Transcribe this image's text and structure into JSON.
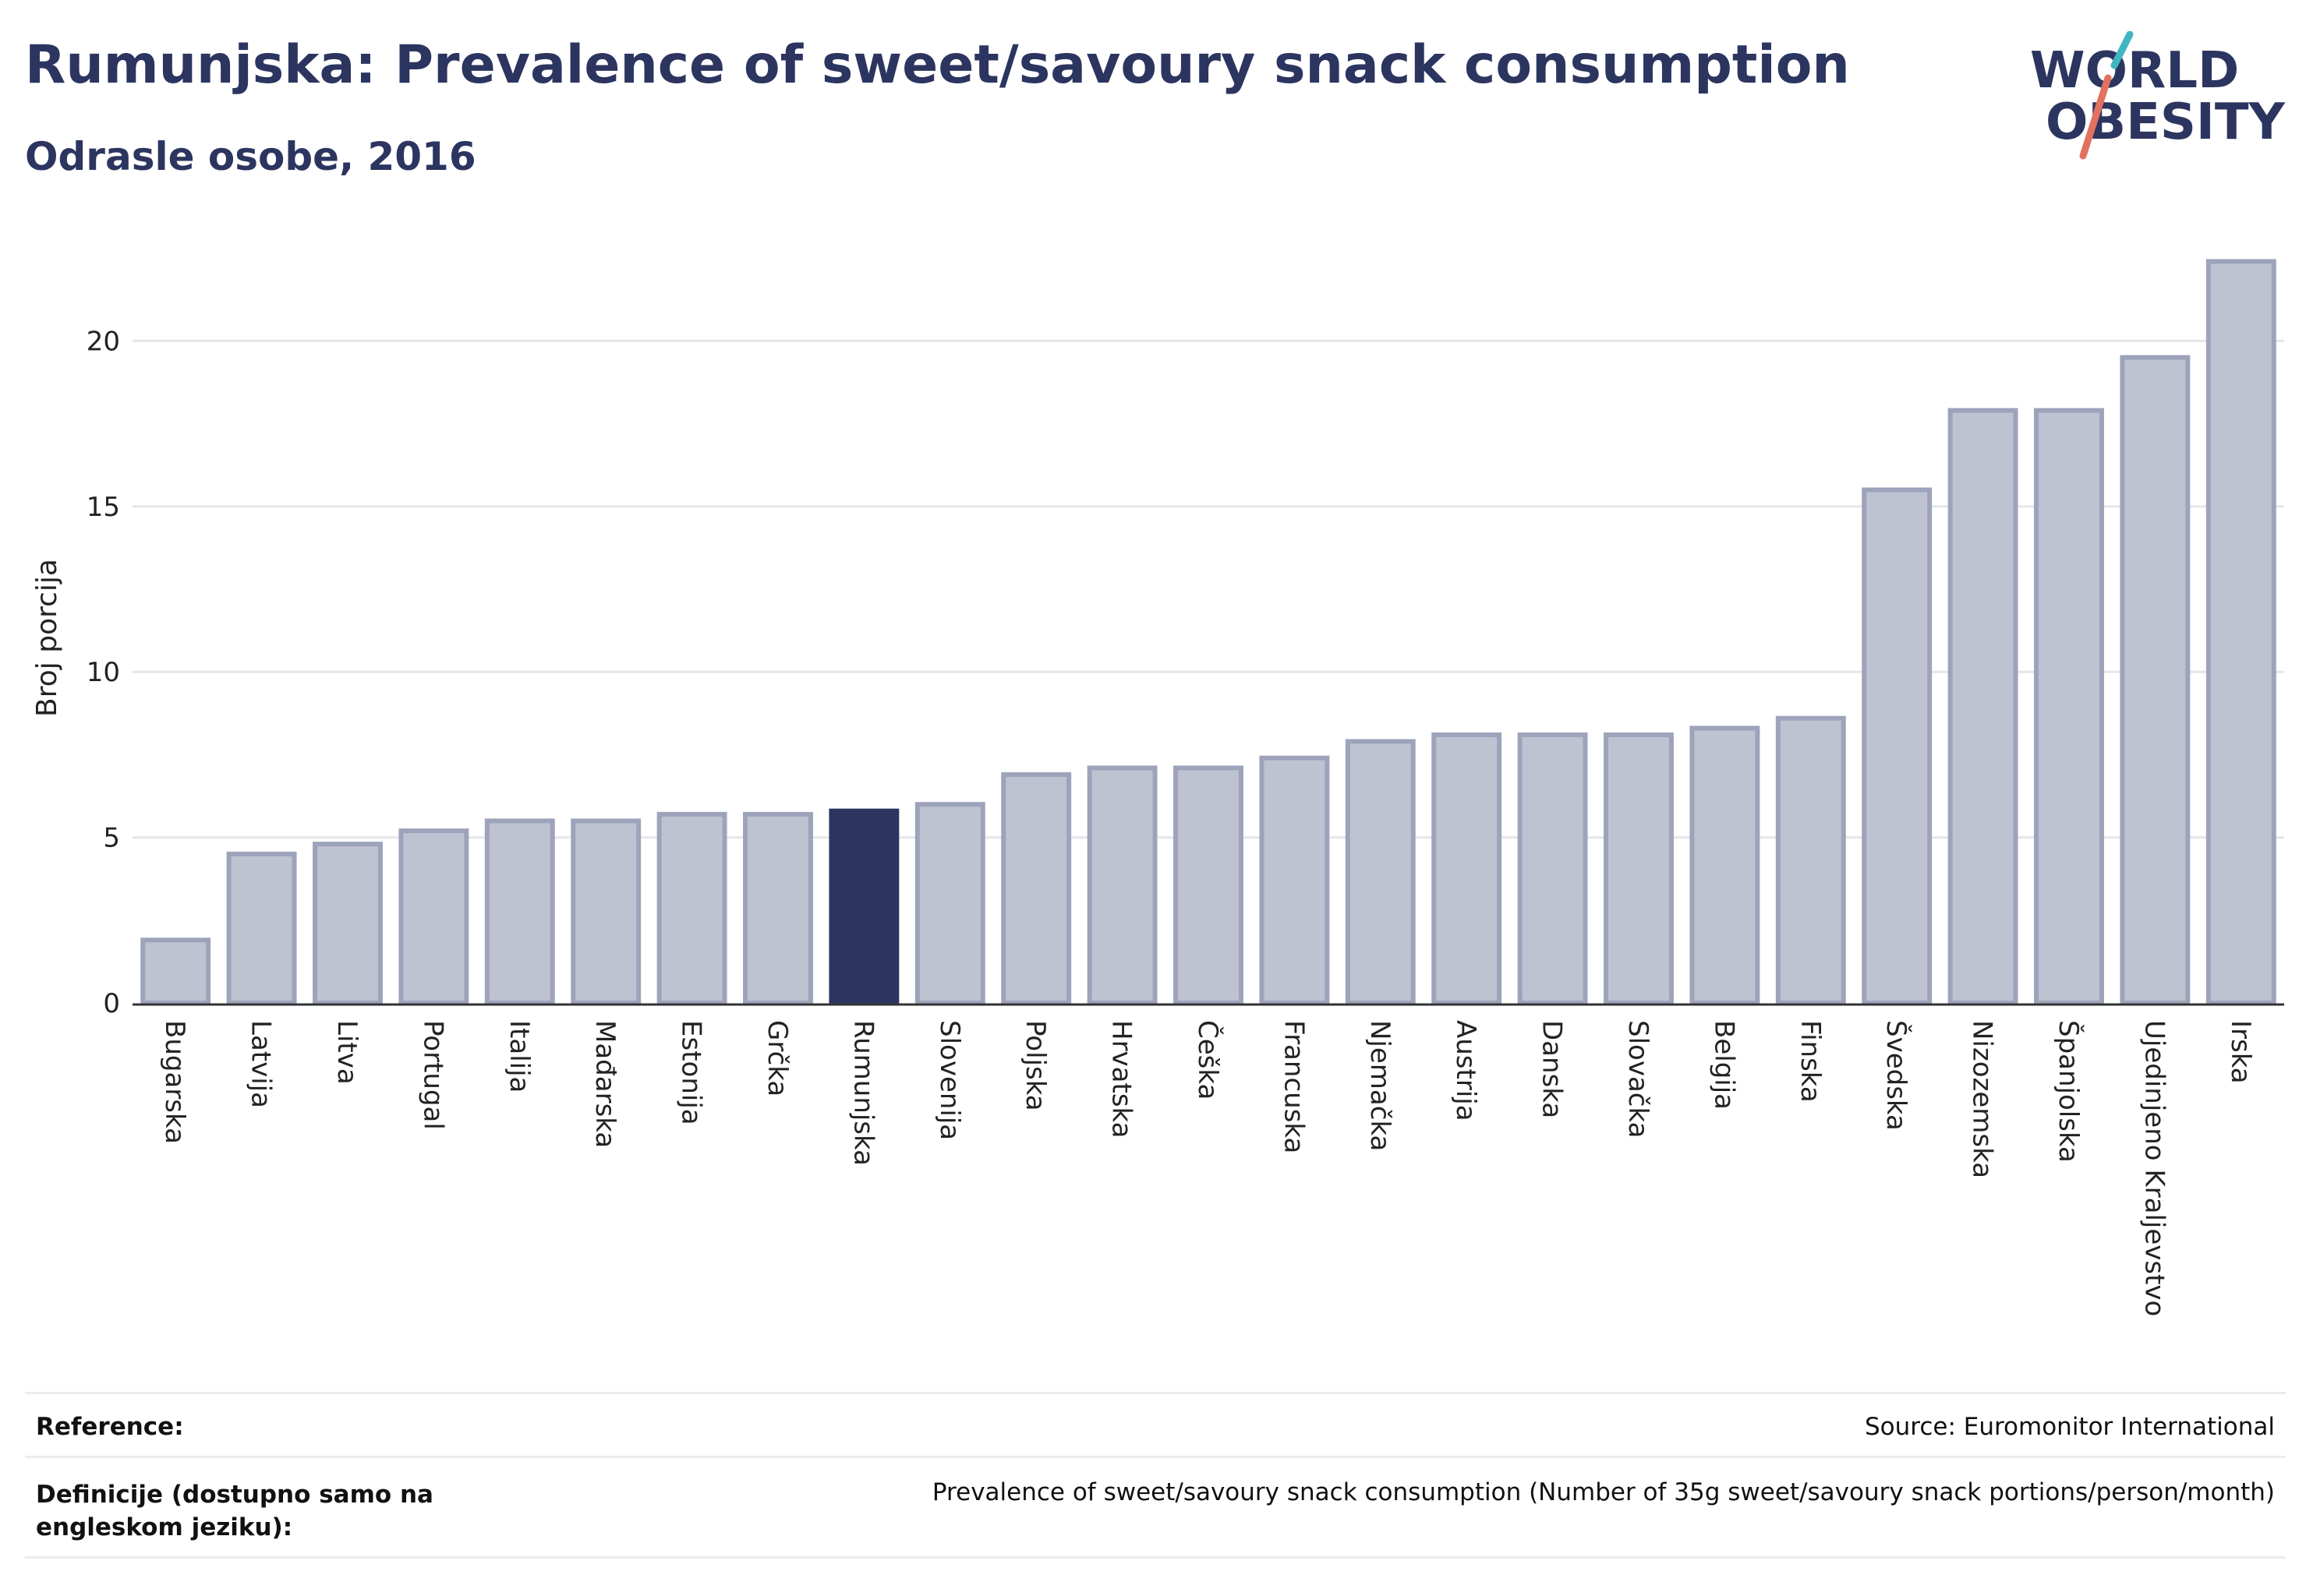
{
  "header": {
    "title": "Rumunjska: Prevalence of sweet/savoury snack consumption",
    "subtitle": "Odrasle osobe, 2016"
  },
  "logo": {
    "line1": "WORLD",
    "line2": "OBESITY",
    "accent_colors": [
      "#3fb6c2",
      "#e2725f"
    ],
    "text_color": "#2c355f"
  },
  "colors": {
    "highlight": "#2c355f",
    "bar_fill": "#bfc2d0",
    "bar_stroke": "#9da3bb",
    "grid": "#e6e6ea",
    "axis": "#333333"
  },
  "chart_data": {
    "type": "bar",
    "ylabel": "Broj porcija",
    "ylim": [
      0,
      23
    ],
    "yticks": [
      0,
      5,
      10,
      15,
      20
    ],
    "grid": true,
    "highlight_category": "Rumunjska",
    "categories": [
      "Bugarska",
      "Latvija",
      "Litva",
      "Portugal",
      "Italija",
      "Mađarska",
      "Estonija",
      "Grčka",
      "Rumunjska",
      "Slovenija",
      "Poljska",
      "Hrvatska",
      "Češka",
      "Francuska",
      "Njemačka",
      "Austrija",
      "Danska",
      "Slovačka",
      "Belgija",
      "Finska",
      "Švedska",
      "Nizozemska",
      "Španjolska",
      "Ujedinjeno Kraljevstvo",
      "Irska"
    ],
    "values": [
      1.9,
      4.5,
      4.8,
      5.2,
      5.5,
      5.5,
      5.7,
      5.7,
      5.8,
      6.0,
      6.9,
      7.1,
      7.1,
      7.4,
      7.9,
      8.1,
      8.1,
      8.1,
      8.3,
      8.6,
      15.5,
      17.9,
      17.9,
      19.5,
      22.4
    ]
  },
  "footer": {
    "reference_label": "Reference:",
    "reference_value": "Source: Euromonitor International",
    "definition_label": "Definicije (dostupno samo na engleskom jeziku):",
    "definition_value": "Prevalence of sweet/savoury snack consumption (Number of 35g sweet/savoury snack portions/person/month)"
  }
}
